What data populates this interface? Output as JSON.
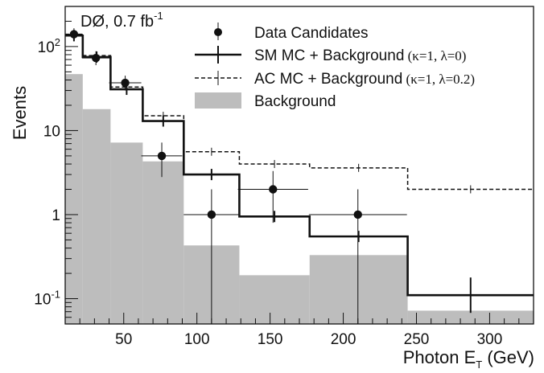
{
  "chart_data": {
    "type": "histogram",
    "experiment_label": "DØ, 0.7 fb",
    "experiment_label_sup": "-1",
    "xlabel": "Photon E",
    "xlabel_sub": "T",
    "xlabel_unit": " (GeV)",
    "ylabel": "Events",
    "x_range": [
      10,
      330
    ],
    "y_range": [
      0.05,
      300
    ],
    "y_scale": "log",
    "x_ticks": [
      50,
      100,
      150,
      200,
      250,
      300
    ],
    "y_ticks": [
      {
        "value": 0.1,
        "base": "10",
        "exp": "-1"
      },
      {
        "value": 1,
        "label": "1"
      },
      {
        "value": 10,
        "label": "10"
      },
      {
        "value": 100,
        "base": "10",
        "exp": "2"
      }
    ],
    "bin_edges": [
      10,
      22,
      41,
      63,
      91,
      129,
      177,
      244,
      330
    ],
    "background": [
      47,
      18,
      7.2,
      4.3,
      0.43,
      0.19,
      0.33,
      0.072
    ],
    "sm": [
      135,
      75,
      31,
      13,
      3.0,
      0.95,
      0.55,
      0.11
    ],
    "ac": [
      140,
      78,
      33,
      15,
      5.6,
      4.0,
      3.6,
      2.0
    ],
    "data": [
      {
        "x": 16,
        "y": 140,
        "xerr": 6,
        "ylo": 115,
        "yhi": 165
      },
      {
        "x": 31,
        "y": 73,
        "xerr": 9.5,
        "ylo": 60,
        "yhi": 88
      },
      {
        "x": 51,
        "y": 37,
        "xerr": 11,
        "ylo": 30,
        "yhi": 45
      },
      {
        "x": 76,
        "y": 5,
        "xerr": 14,
        "ylo": 2.8,
        "yhi": 7.2
      },
      {
        "x": 110,
        "y": 1,
        "xerr": 19,
        "ylo": 0.05,
        "yhi": 2.0
      },
      {
        "x": 152,
        "y": 2,
        "xerr": 24,
        "ylo": 0.8,
        "yhi": 3.3
      },
      {
        "x": 210,
        "y": 1,
        "xerr": 33.5,
        "ylo": 0.05,
        "yhi": 2.0
      }
    ],
    "legend": [
      {
        "label": "Data Candidates",
        "style": "data"
      },
      {
        "label": "SM MC + Background",
        "params": "(κ=1, λ=0)",
        "style": "sm"
      },
      {
        "label": "AC MC + Background",
        "params": "(κ=1, λ=0.2)",
        "style": "ac"
      },
      {
        "label": "Background",
        "style": "background"
      }
    ],
    "colors": {
      "background": "#bdbdbd",
      "sm": "#111111",
      "ac": "#111111",
      "data": "#111111"
    }
  }
}
